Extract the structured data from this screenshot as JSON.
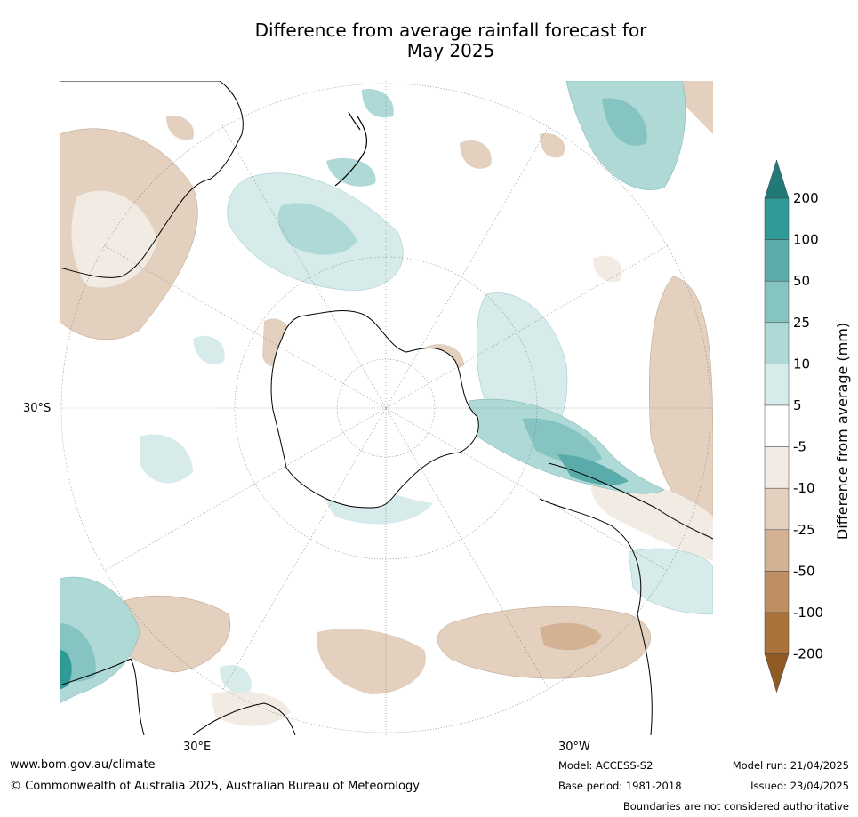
{
  "title": {
    "line1": "Difference from average rainfall forecast for",
    "line2": "May 2025"
  },
  "map": {
    "lat_label": "30°S",
    "lon_label_left": "30°E",
    "lon_label_right": "30°W"
  },
  "colorbar": {
    "label": "Difference from average (mm)",
    "levels": [
      "200",
      "100",
      "50",
      "25",
      "10",
      "5",
      "-5",
      "-10",
      "-25",
      "-50",
      "-100",
      "-200"
    ],
    "colors": [
      "#227a77",
      "#2f9b97",
      "#5aacaa",
      "#86c4c1",
      "#afd9d6",
      "#d7ebea",
      "#ffffff",
      "#f2ebe4",
      "#e3d0bf",
      "#d2b292",
      "#be8f63",
      "#a97339",
      "#8f5b23"
    ],
    "extend": "both"
  },
  "footer": {
    "website": "www.bom.gov.au/climate",
    "copyright": "© Commonwealth of Australia 2025, Australian Bureau of Meteorology",
    "model": "Model: ACCESS-S2",
    "base_period": "Base period: 1981-2018",
    "model_run": "Model run: 21/04/2025",
    "issued": "Issued: 23/04/2025",
    "disclaimer": "Boundaries are not considered authoritative"
  }
}
